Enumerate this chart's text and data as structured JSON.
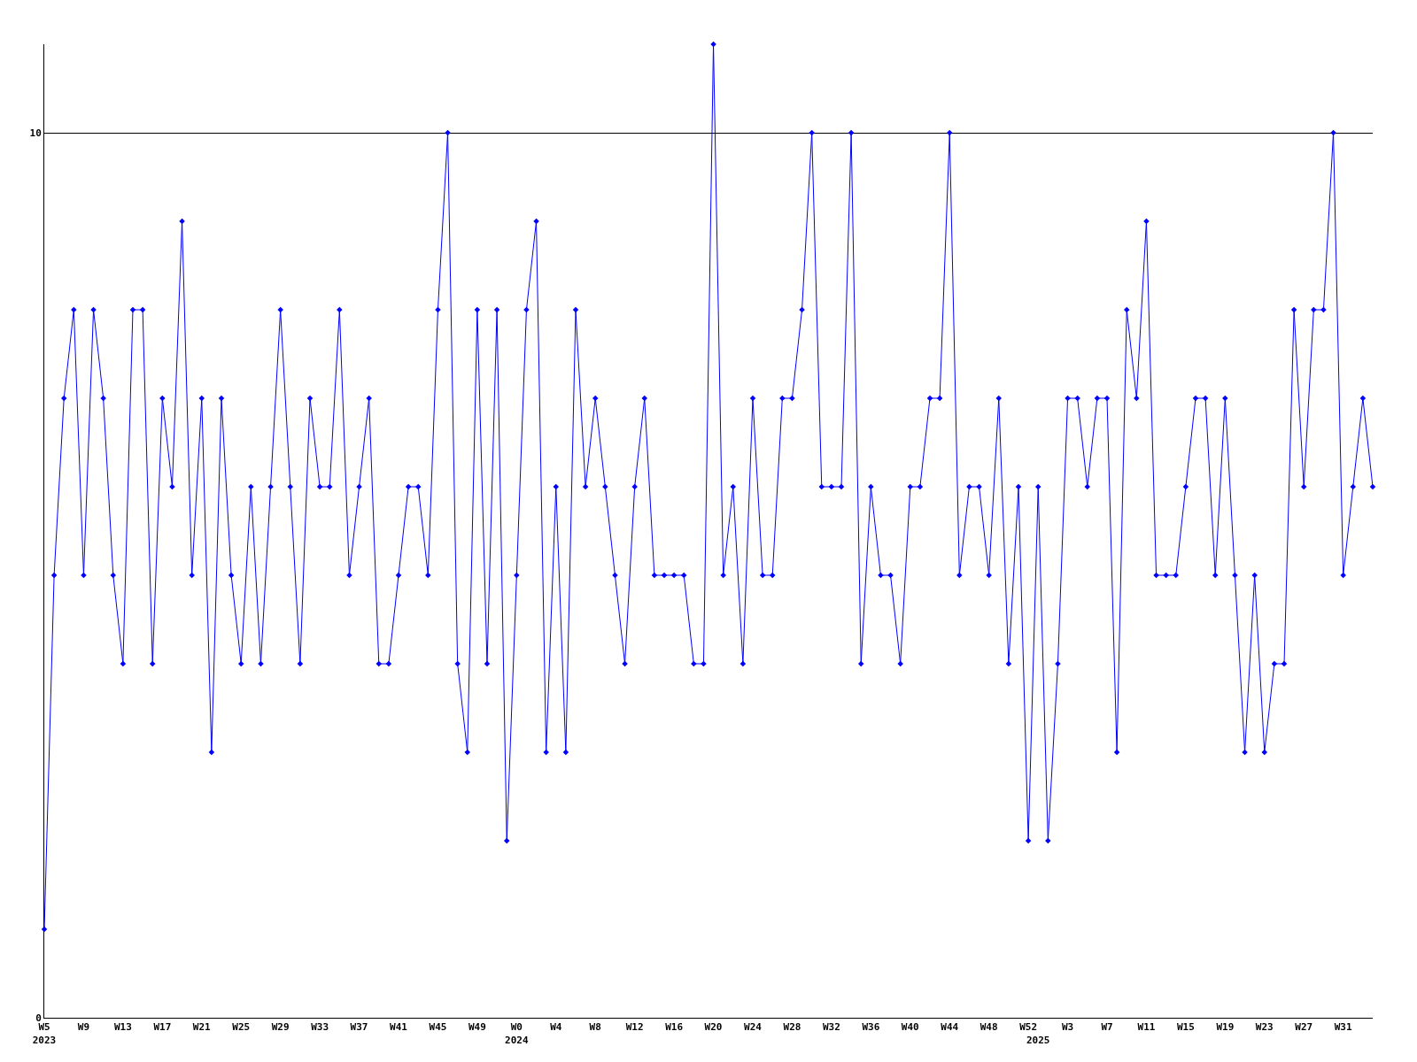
{
  "chart_data": {
    "type": "line",
    "categories": [
      "W5\n2023",
      null,
      null,
      null,
      "W9",
      null,
      null,
      null,
      "W13",
      null,
      null,
      null,
      "W17",
      null,
      null,
      null,
      "W21",
      null,
      null,
      null,
      "W25",
      null,
      null,
      null,
      "W29",
      null,
      null,
      null,
      "W33",
      null,
      null,
      null,
      "W37",
      null,
      null,
      null,
      "W41",
      null,
      null,
      null,
      "W45",
      null,
      null,
      null,
      "W49",
      null,
      null,
      null,
      "W0\n2024",
      null,
      null,
      null,
      "W4",
      null,
      null,
      null,
      "W8",
      null,
      null,
      null,
      "W12",
      null,
      null,
      null,
      "W16",
      null,
      null,
      null,
      "W20",
      null,
      null,
      null,
      "W24",
      null,
      null,
      null,
      "W28",
      null,
      null,
      null,
      "W32",
      null,
      null,
      null,
      "W36",
      null,
      null,
      null,
      "W40",
      null,
      null,
      null,
      "W44",
      null,
      null,
      null,
      "W48",
      null,
      null,
      null,
      "W52",
      "\n2025",
      null,
      null,
      "W3",
      null,
      null,
      null,
      "W7",
      null,
      null,
      null,
      "W11",
      null,
      null,
      null,
      "W15",
      null,
      null,
      null,
      "W19",
      null,
      null,
      null,
      "W23",
      null,
      null,
      null,
      "W27",
      null,
      null,
      null,
      "W31",
      null,
      null,
      null
    ],
    "series": [
      {
        "color": "#0000ff",
        "values": [
          1,
          5,
          7,
          8,
          5,
          8,
          7,
          5,
          4,
          8,
          8,
          4,
          7,
          6,
          9,
          5,
          7,
          3,
          7,
          5,
          4,
          6,
          4,
          6,
          8,
          6,
          4,
          7,
          6,
          6,
          8,
          5,
          6,
          7,
          4,
          4,
          5,
          6,
          6,
          5,
          8,
          10,
          4,
          3,
          8,
          4,
          8,
          2,
          5,
          8,
          9,
          3,
          6,
          3,
          8,
          6,
          7,
          6,
          5,
          4,
          6,
          7,
          5,
          5,
          5,
          5,
          4,
          4,
          11,
          5,
          6,
          4,
          7,
          5,
          5,
          7,
          7,
          8,
          10,
          6,
          6,
          6,
          10,
          4,
          6,
          5,
          5,
          4,
          6,
          6,
          7,
          7,
          10,
          5,
          6,
          6,
          5,
          7,
          4,
          6,
          2,
          6,
          2,
          4,
          7,
          7,
          6,
          7,
          7,
          3,
          8,
          7,
          9,
          5,
          5,
          5,
          6,
          7,
          7,
          5,
          7,
          5,
          3,
          5,
          3,
          4,
          4,
          8,
          6,
          8,
          8,
          10,
          5,
          6,
          7,
          6
        ]
      }
    ],
    "ylim": [
      0,
      11
    ],
    "yticks": [
      0,
      10
    ],
    "grid": "y",
    "legend": false,
    "marker": "diamond",
    "line_style": "solid"
  }
}
